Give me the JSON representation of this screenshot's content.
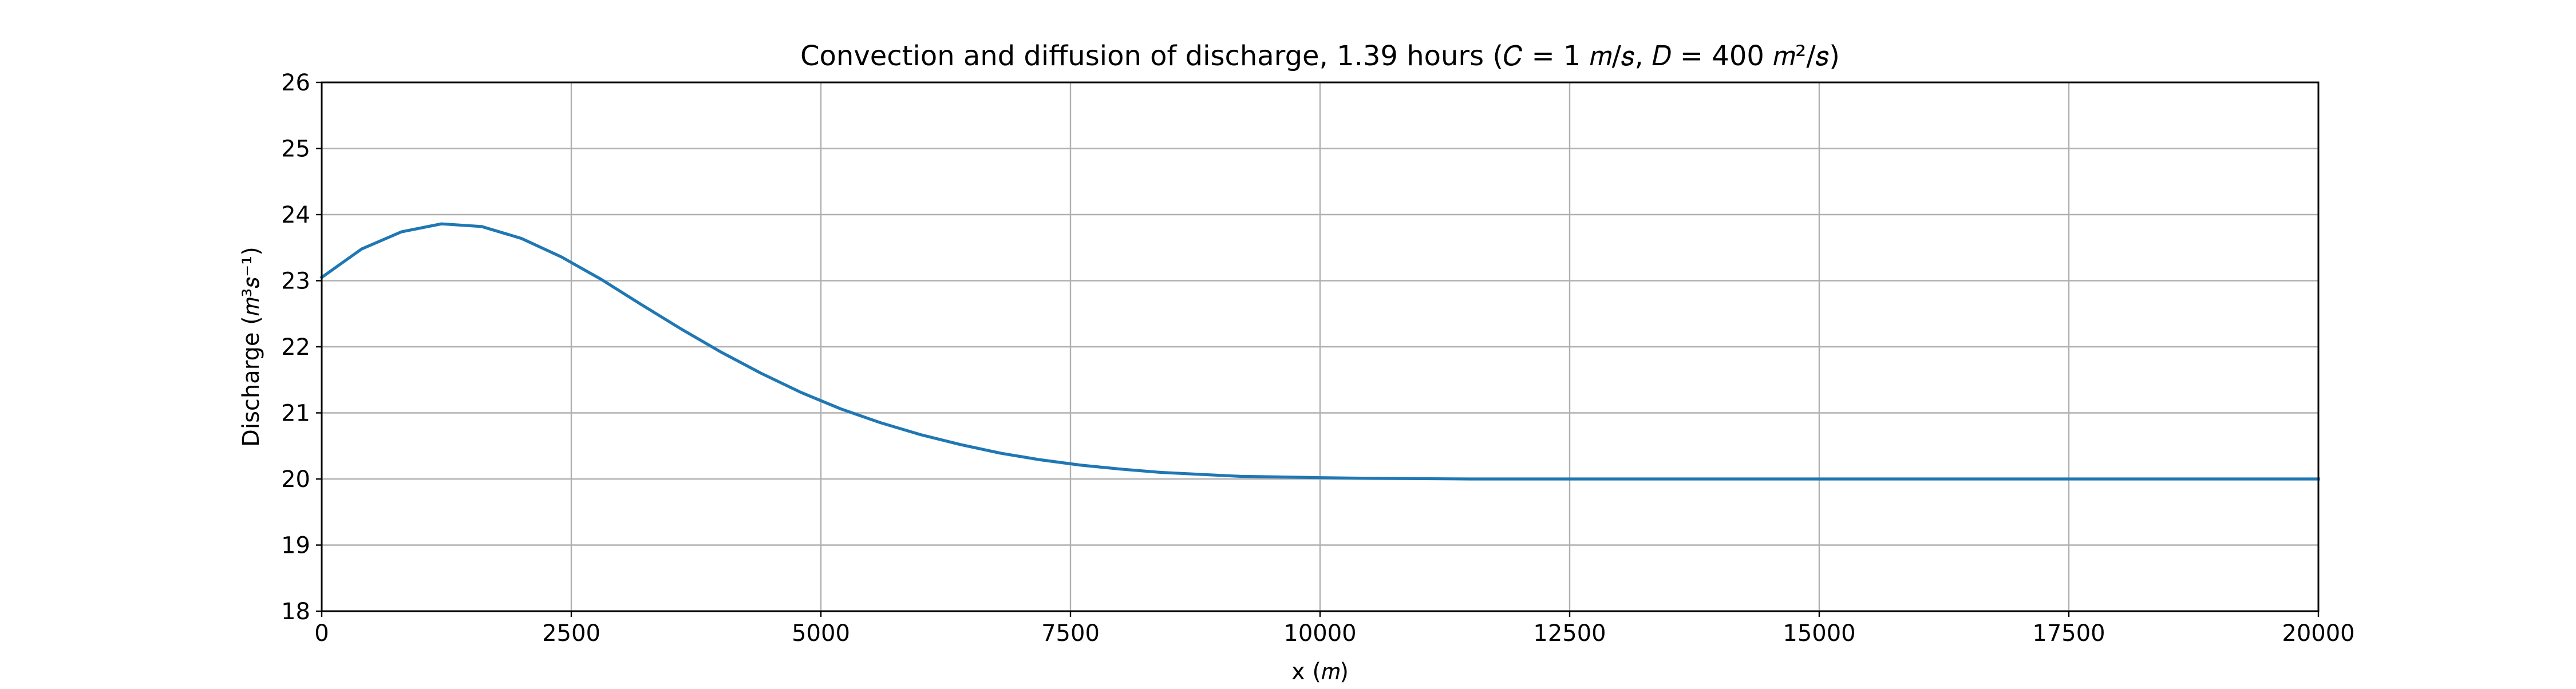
{
  "chart_data": {
    "type": "line",
    "title": "Convection and diffusion of discharge, 1.39 hours (𝐶 = 1 𝑚/𝑠, 𝐷 = 400 𝑚²/𝑠)",
    "xlabel": "x (𝑚)",
    "ylabel": "Discharge (𝑚³𝑠⁻¹)",
    "xlim": [
      0,
      20000
    ],
    "ylim": [
      18,
      26
    ],
    "xticks": [
      0,
      2500,
      5000,
      7500,
      10000,
      12500,
      15000,
      17500,
      20000
    ],
    "xtick_labels": [
      "0",
      "2500",
      "5000",
      "7500",
      "10000",
      "12500",
      "15000",
      "17500",
      "20000"
    ],
    "yticks": [
      18,
      19,
      20,
      21,
      22,
      23,
      24,
      25,
      26
    ],
    "ytick_labels": [
      "18",
      "19",
      "20",
      "21",
      "22",
      "23",
      "24",
      "25",
      "26"
    ],
    "grid": true,
    "series": [
      {
        "color": "#1f77b4",
        "x": [
          0,
          400,
          800,
          1200,
          1600,
          2000,
          2400,
          2800,
          3200,
          3600,
          4000,
          4400,
          4800,
          5200,
          5600,
          6000,
          6400,
          6800,
          7200,
          7600,
          8000,
          8400,
          8800,
          9200,
          9600,
          10000,
          10500,
          11000,
          11500,
          12000,
          13000,
          14000,
          15000,
          16000,
          17000,
          18000,
          19000,
          20000
        ],
        "y": [
          23.05,
          23.48,
          23.74,
          23.86,
          23.82,
          23.64,
          23.36,
          23.02,
          22.64,
          22.27,
          21.92,
          21.6,
          21.31,
          21.06,
          20.85,
          20.67,
          20.52,
          20.39,
          20.29,
          20.21,
          20.15,
          20.1,
          20.07,
          20.04,
          20.03,
          20.02,
          20.01,
          20.005,
          20.0,
          20.0,
          20.0,
          20.0,
          20.0,
          20.0,
          20.0,
          20.0,
          20.0,
          20.0
        ]
      }
    ]
  }
}
